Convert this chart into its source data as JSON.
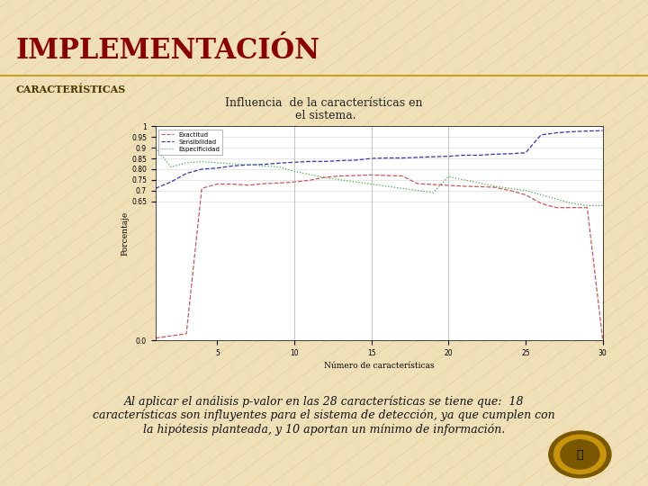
{
  "title": "IMPLEMENTACIÓN",
  "subtitle": "CARACTERÍSTICAS",
  "chart_title": "Influencia  de la características en\n el sistema.",
  "bg_color": "#f0e0b8",
  "title_color": "#8b0000",
  "subtitle_color": "#4a3a00",
  "separator_color": "#c8a030",
  "ylabel": "Porcentaje",
  "xlabel": "Número de características",
  "ylim": [
    0.0,
    1.0
  ],
  "xlim": [
    1,
    30
  ],
  "legend_labels": [
    "Exactitud",
    "Sensibilidad",
    "Especificidad"
  ],
  "legend_colors": [
    "#cc5555",
    "#3333bb",
    "#44aa44"
  ],
  "bottom_text": "Al aplicar el análisis p-valor en las 28 características se tiene que:  18\ncaracterísticas son influyentes para el sistema de detección, ya que cumplen con\nla hipótesis planteada, y 10 aportan un mínimo de información.",
  "sensibilidad_x": [
    1,
    2,
    3,
    4,
    5,
    6,
    7,
    8,
    9,
    10,
    11,
    12,
    13,
    14,
    15,
    16,
    17,
    18,
    19,
    20,
    21,
    22,
    23,
    24,
    25,
    26,
    27,
    28,
    29,
    30
  ],
  "sensibilidad_y": [
    0.71,
    0.74,
    0.78,
    0.8,
    0.805,
    0.815,
    0.82,
    0.822,
    0.828,
    0.832,
    0.836,
    0.836,
    0.84,
    0.842,
    0.85,
    0.852,
    0.852,
    0.855,
    0.858,
    0.86,
    0.865,
    0.865,
    0.87,
    0.872,
    0.876,
    0.96,
    0.97,
    0.975,
    0.978,
    0.98
  ],
  "especificidad_x": [
    1,
    2,
    3,
    4,
    5,
    6,
    7,
    8,
    9,
    10,
    11,
    12,
    13,
    14,
    15,
    16,
    17,
    18,
    19,
    20,
    21,
    22,
    23,
    24,
    25,
    26,
    27,
    28,
    29,
    30
  ],
  "especificidad_y": [
    0.9,
    0.81,
    0.83,
    0.835,
    0.83,
    0.825,
    0.82,
    0.815,
    0.81,
    0.79,
    0.775,
    0.76,
    0.75,
    0.74,
    0.73,
    0.72,
    0.71,
    0.7,
    0.69,
    0.765,
    0.75,
    0.735,
    0.72,
    0.71,
    0.7,
    0.68,
    0.66,
    0.64,
    0.63,
    0.63
  ],
  "exactitud_x": [
    1,
    2,
    3,
    4,
    5,
    6,
    7,
    8,
    9,
    10,
    11,
    12,
    13,
    14,
    15,
    16,
    17,
    18,
    19,
    20,
    21,
    22,
    23,
    24,
    25,
    26,
    27,
    28,
    29,
    30
  ],
  "exactitud_y": [
    0.01,
    0.02,
    0.03,
    0.71,
    0.73,
    0.73,
    0.725,
    0.732,
    0.735,
    0.74,
    0.748,
    0.762,
    0.768,
    0.77,
    0.773,
    0.77,
    0.768,
    0.732,
    0.728,
    0.724,
    0.72,
    0.718,
    0.715,
    0.7,
    0.68,
    0.64,
    0.62,
    0.62,
    0.62,
    0.005
  ],
  "stripe_color": "#e8d0a0",
  "chart_bg": "#ffffff",
  "grid_color": "#dddddd"
}
